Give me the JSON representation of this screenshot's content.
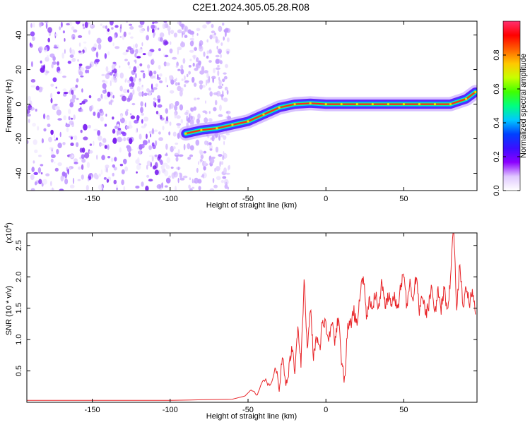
{
  "title": "C2E1.2024.305.05.28.R08",
  "colors": {
    "snr_line": "#e8262a",
    "axis": "#000000"
  },
  "chart_data": [
    {
      "type": "heatmap",
      "xlabel": "Height of straight line (km)",
      "ylabel": "Frequency (Hz)",
      "xlim": [
        -192,
        97
      ],
      "ylim": [
        -50,
        48
      ],
      "xticks": [
        "-150",
        "-100",
        "-50",
        "0",
        "50"
      ],
      "xtick_values": [
        -150,
        -100,
        -50,
        0,
        50
      ],
      "yticks": [
        "-40",
        "-20",
        "0",
        "20",
        "40"
      ],
      "ytick_values": [
        -40,
        -20,
        0,
        20,
        40
      ],
      "noise_region_x": [
        -192,
        -62
      ],
      "signal_track": {
        "x": [
          -90,
          -80,
          -70,
          -60,
          -50,
          -40,
          -30,
          -20,
          -10,
          0,
          10,
          20,
          30,
          40,
          50,
          60,
          70,
          80,
          90,
          96
        ],
        "frequency": [
          -17,
          -15,
          -14,
          -12,
          -10,
          -6,
          -2,
          0,
          0.5,
          0,
          0,
          0,
          0,
          0,
          0,
          0,
          0,
          0,
          3,
          7
        ]
      },
      "colorbar": {
        "label": "Normalized spectral amplitude",
        "ticks": [
          "0.0",
          "0.2",
          "0.4",
          "0.6",
          "0.8"
        ],
        "tick_values": [
          0.0,
          0.2,
          0.4,
          0.6,
          0.8
        ],
        "range": [
          0,
          1
        ],
        "colormap": [
          "#ffffff",
          "#e0c8ff",
          "#8b00ff",
          "#3a0fff",
          "#0040ff",
          "#00c8ff",
          "#00ff80",
          "#40ff00",
          "#c8ff00",
          "#ffc800",
          "#ff6000",
          "#ff0000",
          "#ff3070"
        ]
      }
    },
    {
      "type": "line",
      "xlabel": "Height of straight line (km)",
      "ylabel": "SNR (10 * v/v)",
      "y_multiplier": "(x10",
      "y_multiplier_exp": "4",
      "y_multiplier_close": ")",
      "xlim": [
        -192,
        97
      ],
      "ylim": [
        0,
        2.7
      ],
      "xticks": [
        "-150",
        "-100",
        "-50",
        "0",
        "50"
      ],
      "xtick_values": [
        -150,
        -100,
        -50,
        0,
        50
      ],
      "yticks": [
        "0.5",
        "1.0",
        "1.5",
        "2.0",
        "2.5"
      ],
      "ytick_values": [
        0.5,
        1.0,
        1.5,
        2.0,
        2.5
      ],
      "series": [
        {
          "x": [
            -192,
            -150,
            -100,
            -60,
            -52,
            -48,
            -44,
            -40,
            -36,
            -32,
            -30,
            -28,
            -26,
            -24,
            -22,
            -20,
            -18,
            -16,
            -14,
            -12,
            -10,
            -8,
            -6,
            -4,
            -2,
            0,
            2,
            4,
            6,
            8,
            10,
            12,
            14,
            16,
            18,
            20,
            22,
            24,
            26,
            28,
            30,
            32,
            34,
            36,
            38,
            40,
            42,
            44,
            46,
            48,
            50,
            52,
            54,
            56,
            58,
            60,
            62,
            64,
            66,
            68,
            70,
            72,
            74,
            76,
            78,
            80,
            82,
            84,
            86,
            88,
            90,
            92,
            94,
            96
          ],
          "y": [
            0.03,
            0.03,
            0.03,
            0.05,
            0.1,
            0.2,
            0.12,
            0.35,
            0.3,
            0.55,
            0.2,
            0.75,
            0.3,
            0.45,
            0.9,
            0.5,
            1.2,
            0.6,
            1.9,
            0.9,
            1.5,
            0.75,
            1.1,
            0.8,
            1.35,
            1.2,
            1.05,
            1.3,
            0.95,
            1.4,
            0.7,
            0.35,
            1.2,
            1.25,
            1.45,
            1.2,
            1.7,
            2.05,
            1.4,
            1.6,
            1.55,
            1.75,
            1.5,
            1.95,
            1.5,
            1.7,
            1.55,
            1.65,
            1.45,
            1.85,
            2.1,
            1.5,
            1.95,
            1.6,
            2.05,
            1.45,
            1.75,
            1.4,
            1.55,
            1.9,
            1.45,
            1.75,
            1.5,
            1.8,
            1.45,
            2.0,
            2.8,
            1.5,
            2.2,
            1.45,
            1.85,
            1.55,
            1.75,
            1.4
          ]
        }
      ]
    }
  ]
}
